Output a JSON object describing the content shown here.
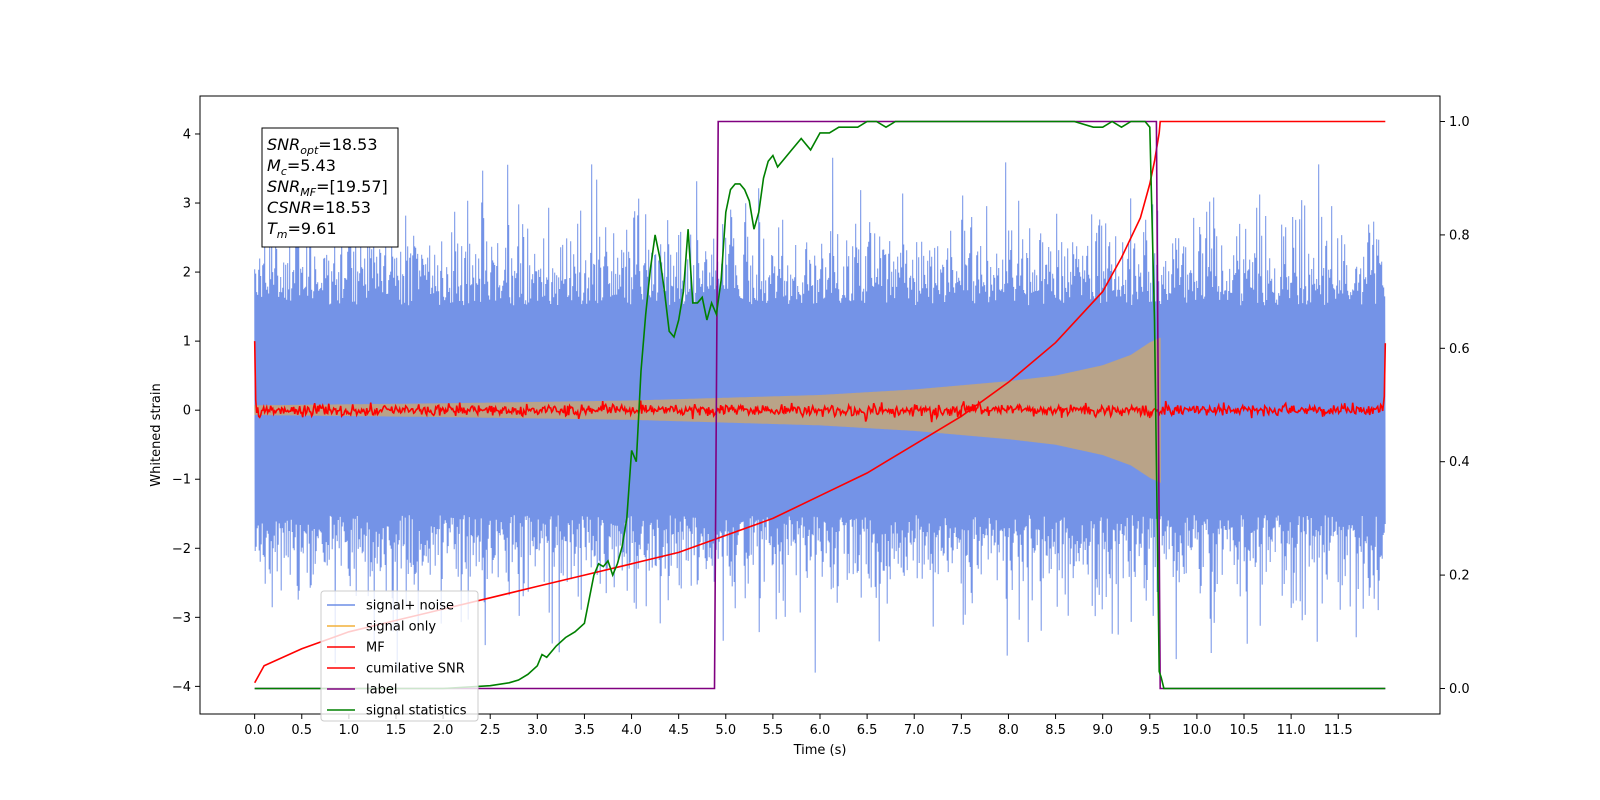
{
  "chart_data": {
    "type": "line",
    "title": "",
    "xlabel": "Time (s)",
    "ylabel": "Whitened strain",
    "ylabel_right": "",
    "xlim": [
      -0.58,
      12.58
    ],
    "ylim": [
      -4.4,
      4.55
    ],
    "ylim_right": [
      -0.045,
      1.045
    ],
    "x_ticks": [
      "0.0",
      "0.5",
      "1.0",
      "1.5",
      "2.0",
      "2.5",
      "3.0",
      "3.5",
      "4.0",
      "4.5",
      "5.0",
      "5.5",
      "6.0",
      "6.5",
      "7.0",
      "7.5",
      "8.0",
      "8.5",
      "9.0",
      "9.5",
      "10.0",
      "10.5",
      "11.0",
      "11.5"
    ],
    "y_ticks": [
      "−4",
      "−3",
      "−2",
      "−1",
      "0",
      "1",
      "2",
      "3",
      "4"
    ],
    "y_ticks_right": [
      "0.0",
      "0.2",
      "0.4",
      "0.6",
      "0.8",
      "1.0"
    ],
    "grid": false,
    "legend_position": "lower-left",
    "series": [
      {
        "name": "signal+ noise",
        "color": "#6d8de6",
        "axis": "left",
        "kind": "noise-band",
        "x_range": [
          0.0,
          12.0
        ],
        "typical_amplitude": 1.6,
        "max_amplitude": 3.8
      },
      {
        "name": "signal only",
        "color": "#f2b13a",
        "axis": "left",
        "kind": "chirp",
        "x_range": [
          0.0,
          9.61
        ],
        "envelope": [
          [
            0.0,
            0.07
          ],
          [
            2.0,
            0.1
          ],
          [
            4.0,
            0.14
          ],
          [
            6.0,
            0.22
          ],
          [
            7.0,
            0.3
          ],
          [
            8.0,
            0.42
          ],
          [
            8.5,
            0.5
          ],
          [
            9.0,
            0.65
          ],
          [
            9.3,
            0.8
          ],
          [
            9.5,
            0.98
          ],
          [
            9.61,
            1.05
          ]
        ]
      },
      {
        "name": "MF",
        "color": "#ff0000",
        "axis": "left",
        "kind": "noise-line",
        "x_range": [
          0.0,
          12.0
        ],
        "typical_amplitude": 0.06,
        "edge_values": [
          1.0,
          0.97
        ]
      },
      {
        "name": "cumilative SNR",
        "color": "#ff0000",
        "axis": "right",
        "kind": "line",
        "x": [
          0.0,
          0.1,
          0.5,
          1.0,
          1.5,
          2.0,
          2.5,
          3.0,
          3.5,
          4.0,
          4.5,
          5.0,
          5.5,
          6.0,
          6.5,
          7.0,
          7.5,
          8.0,
          8.5,
          9.0,
          9.2,
          9.4,
          9.5,
          9.55,
          9.6,
          9.61,
          12.0
        ],
        "y": [
          0.01,
          0.04,
          0.07,
          0.1,
          0.12,
          0.14,
          0.16,
          0.18,
          0.2,
          0.22,
          0.24,
          0.27,
          0.3,
          0.34,
          0.38,
          0.43,
          0.48,
          0.54,
          0.61,
          0.7,
          0.76,
          0.83,
          0.89,
          0.93,
          0.98,
          1.0,
          1.0
        ]
      },
      {
        "name": "label",
        "color": "#800080",
        "axis": "right",
        "kind": "line",
        "x": [
          0.0,
          4.88,
          4.92,
          9.57,
          9.61,
          12.0
        ],
        "y": [
          0.0,
          0.0,
          1.0,
          1.0,
          0.0,
          0.0
        ]
      },
      {
        "name": "signal statistics",
        "color": "#008000",
        "axis": "right",
        "kind": "line",
        "x": [
          0.0,
          0.5,
          1.0,
          1.5,
          2.0,
          2.5,
          2.7,
          2.8,
          2.9,
          3.0,
          3.05,
          3.1,
          3.2,
          3.3,
          3.4,
          3.5,
          3.6,
          3.65,
          3.7,
          3.75,
          3.8,
          3.85,
          3.9,
          3.95,
          4.0,
          4.05,
          4.1,
          4.15,
          4.2,
          4.25,
          4.3,
          4.35,
          4.4,
          4.45,
          4.5,
          4.55,
          4.6,
          4.65,
          4.7,
          4.75,
          4.8,
          4.85,
          4.9,
          4.95,
          5.0,
          5.05,
          5.1,
          5.15,
          5.2,
          5.25,
          5.3,
          5.35,
          5.4,
          5.45,
          5.5,
          5.55,
          5.6,
          5.7,
          5.8,
          5.9,
          6.0,
          6.1,
          6.2,
          6.3,
          6.4,
          6.5,
          6.6,
          6.7,
          6.8,
          7.0,
          7.2,
          7.4,
          7.6,
          7.8,
          8.0,
          8.5,
          8.7,
          8.9,
          9.0,
          9.1,
          9.2,
          9.3,
          9.4,
          9.45,
          9.5,
          9.55,
          9.6,
          9.62,
          9.65,
          12.0
        ],
        "y": [
          0.0,
          0.0,
          0.0,
          0.0,
          0.0,
          0.005,
          0.01,
          0.015,
          0.025,
          0.04,
          0.06,
          0.055,
          0.075,
          0.09,
          0.1,
          0.115,
          0.2,
          0.22,
          0.215,
          0.225,
          0.2,
          0.22,
          0.25,
          0.3,
          0.42,
          0.4,
          0.56,
          0.66,
          0.74,
          0.8,
          0.76,
          0.7,
          0.63,
          0.62,
          0.65,
          0.7,
          0.81,
          0.68,
          0.68,
          0.69,
          0.65,
          0.68,
          0.66,
          0.72,
          0.84,
          0.88,
          0.89,
          0.89,
          0.88,
          0.86,
          0.81,
          0.84,
          0.9,
          0.93,
          0.94,
          0.92,
          0.93,
          0.95,
          0.97,
          0.95,
          0.98,
          0.98,
          0.99,
          0.99,
          0.99,
          1.0,
          1.0,
          0.99,
          1.0,
          1.0,
          1.0,
          1.0,
          1.0,
          1.0,
          1.0,
          1.0,
          1.0,
          0.99,
          0.99,
          1.0,
          0.99,
          1.0,
          1.0,
          1.0,
          0.99,
          0.65,
          0.03,
          0.02,
          0.0,
          0.0
        ]
      }
    ],
    "annotation": [
      {
        "label": "SNR",
        "sub": "opt",
        "value": "=18.53"
      },
      {
        "label": "M",
        "sub": "c",
        "value": "=5.43"
      },
      {
        "label": "SNR",
        "sub": "MF",
        "value": "=[19.57]"
      },
      {
        "label": "CSNR",
        "sub": "",
        "value": "=18.53"
      },
      {
        "label": "T",
        "sub": "m",
        "value": "=9.61"
      }
    ]
  }
}
